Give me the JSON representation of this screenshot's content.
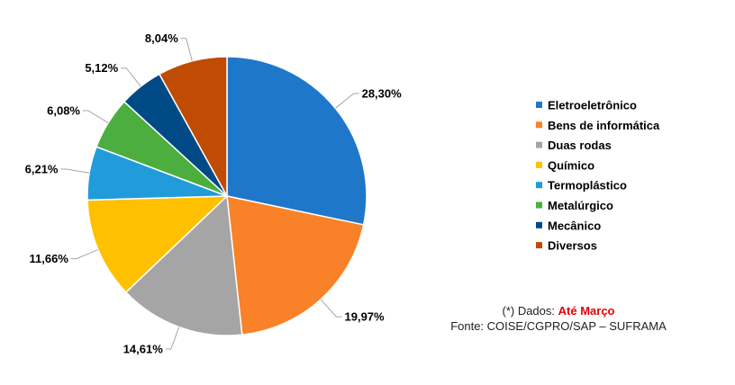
{
  "chart_data": {
    "type": "pie",
    "categories": [
      "Eletroeletrônico",
      "Bens de informática",
      "Duas rodas",
      "Químico",
      "Termoplástico",
      "Metalúrgico",
      "Mecânico",
      "Diversos"
    ],
    "values": [
      28.3,
      19.97,
      14.61,
      11.66,
      6.21,
      6.08,
      5.12,
      8.04
    ],
    "labels": [
      "28,30%",
      "19,97%",
      "14,61%",
      "11,66%",
      "6,21%",
      "6,08%",
      "5,12%",
      "8,04%"
    ],
    "colors": [
      "#1f77c9",
      "#f98127",
      "#a5a5a5",
      "#ffc000",
      "#219bd9",
      "#4cae3f",
      "#004a86",
      "#c04b03"
    ],
    "legend_position": "right",
    "start": "top, clockwise"
  },
  "note": {
    "prefix": "(*) Dados:",
    "highlight": "Até Março",
    "source": "Fonte: COISE/CGPRO/SAP – SUFRAMA"
  }
}
